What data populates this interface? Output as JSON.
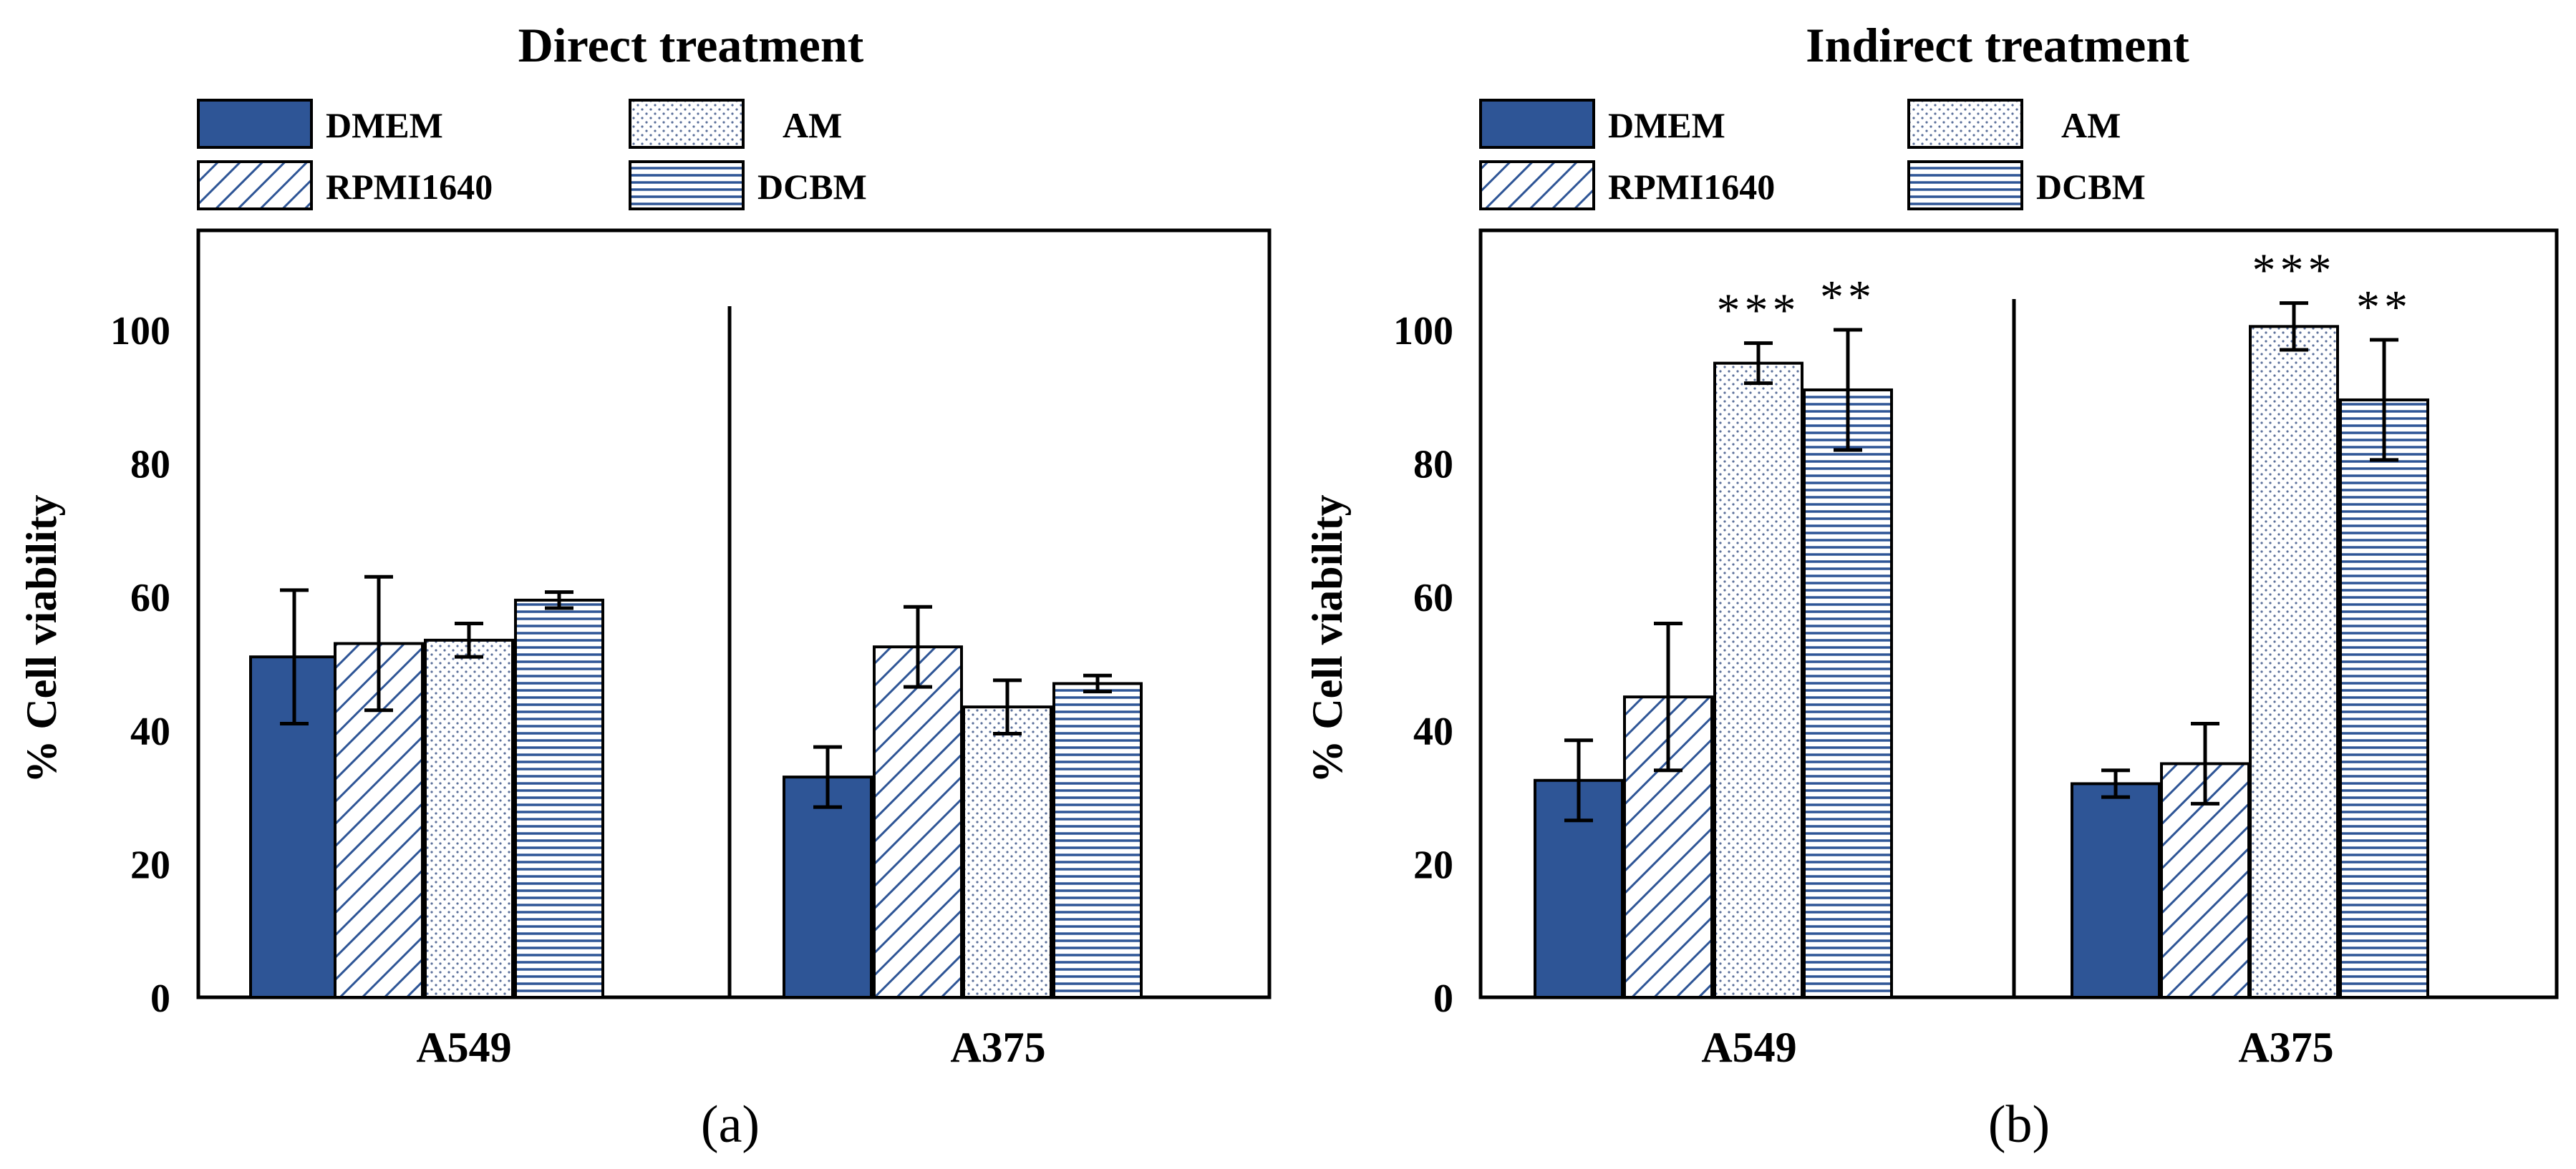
{
  "chart_data": [
    {
      "type": "bar",
      "title": "Direct treatment",
      "panel_label": "(a)",
      "ylabel": "% Cell viability",
      "ylim": [
        0,
        100
      ],
      "yticks": [
        "0",
        "20",
        "40",
        "60",
        "80",
        "100"
      ],
      "categories": [
        "A549",
        "A375"
      ],
      "legend_position": "top",
      "series": [
        {
          "name": "DMEM",
          "values": [
            51,
            33
          ],
          "errors": [
            10,
            4.5
          ],
          "significance": [
            "",
            ""
          ]
        },
        {
          "name": "RPMI1640",
          "values": [
            53,
            52.5
          ],
          "errors": [
            10,
            6
          ],
          "significance": [
            "",
            ""
          ]
        },
        {
          "name": "AM",
          "values": [
            53.5,
            43.5
          ],
          "errors": [
            2.5,
            4
          ],
          "significance": [
            "",
            ""
          ]
        },
        {
          "name": "DCBM",
          "values": [
            59.5,
            47
          ],
          "errors": [
            1.2,
            1.2
          ],
          "significance": [
            "",
            ""
          ]
        }
      ]
    },
    {
      "type": "bar",
      "title": "Indirect treatment",
      "panel_label": "(b)",
      "ylabel": "% Cell viability",
      "ylim": [
        0,
        100
      ],
      "yticks": [
        "0",
        "20",
        "40",
        "60",
        "80",
        "100"
      ],
      "categories": [
        "A549",
        "A375"
      ],
      "legend_position": "top",
      "series": [
        {
          "name": "DMEM",
          "values": [
            32.5,
            32
          ],
          "errors": [
            6,
            2
          ],
          "significance": [
            "",
            ""
          ]
        },
        {
          "name": "RPMI1640",
          "values": [
            45,
            35
          ],
          "errors": [
            11,
            6
          ],
          "significance": [
            "",
            ""
          ]
        },
        {
          "name": "AM",
          "values": [
            95,
            100.5
          ],
          "errors": [
            3,
            3.5
          ],
          "significance": [
            "***",
            "***"
          ]
        },
        {
          "name": "DCBM",
          "values": [
            91,
            89.5
          ],
          "errors": [
            9,
            9
          ],
          "significance": [
            "**",
            "**"
          ]
        }
      ]
    }
  ],
  "colors": {
    "DMEM": "#2e5596",
    "pattern_stroke": "#2e5596",
    "frame": "#000000"
  }
}
